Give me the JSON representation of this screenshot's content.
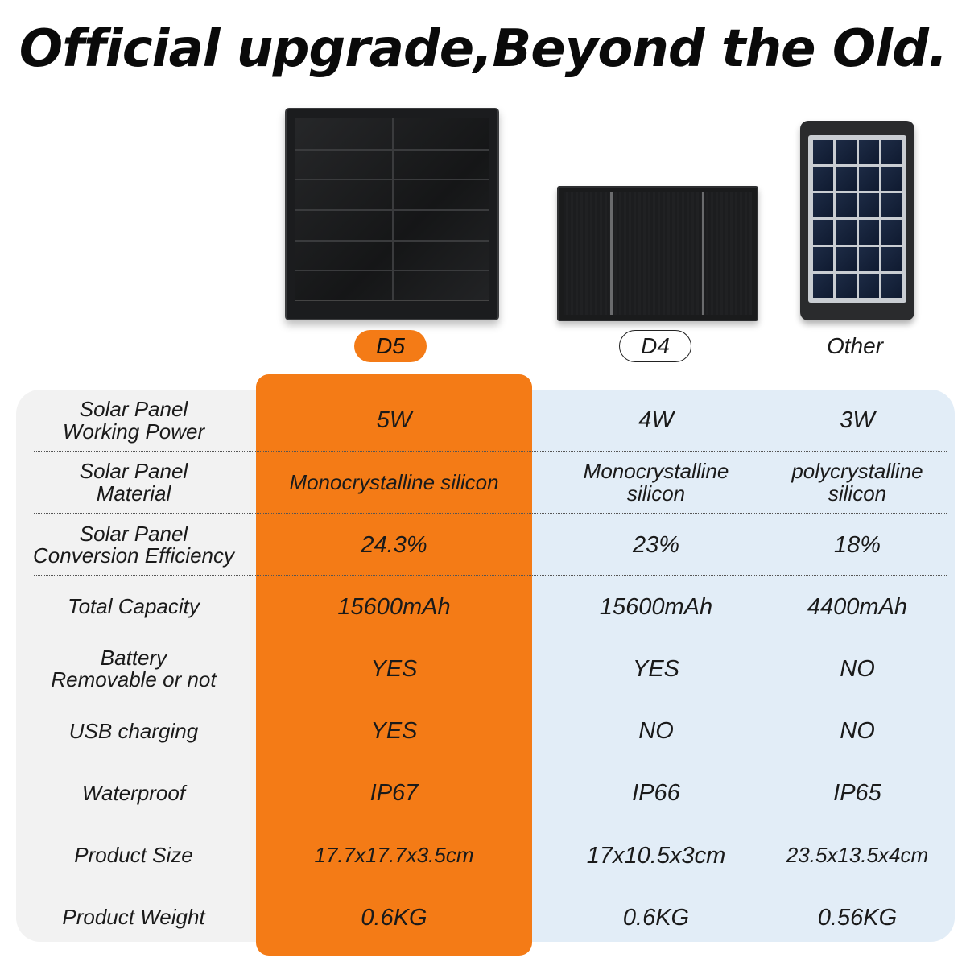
{
  "title": "Official upgrade,Beyond the Old.",
  "products": [
    {
      "label": "D5",
      "highlight": "#f47b16"
    },
    {
      "label": "D4"
    },
    {
      "label": "Other"
    }
  ],
  "rows": [
    {
      "label": "Solar Panel\nWorking Power",
      "d5": "5W",
      "d4": "4W",
      "other": "3W"
    },
    {
      "label": "Solar Panel\nMaterial",
      "d5": "Monocrystalline silicon",
      "d4": "Monocrystalline\nsilicon",
      "other": "polycrystalline\nsilicon"
    },
    {
      "label": "Solar Panel\nConversion Efficiency",
      "d5": "24.3%",
      "d4": "23%",
      "other": "18%"
    },
    {
      "label": "Total Capacity",
      "d5": "15600mAh",
      "d4": "15600mAh",
      "other": "4400mAh"
    },
    {
      "label": "Battery\nRemovable or not",
      "d5": "YES",
      "d4": "YES",
      "other": "NO"
    },
    {
      "label": "USB charging",
      "d5": "YES",
      "d4": "NO",
      "other": "NO"
    },
    {
      "label": "Waterproof",
      "d5": "IP67",
      "d4": "IP66",
      "other": "IP65"
    },
    {
      "label": "Product Size",
      "d5": "17.7x17.7x3.5cm",
      "d4": "17x10.5x3cm",
      "other": "23.5x13.5x4cm"
    },
    {
      "label": "Product Weight",
      "d5": "0.6KG",
      "d4": "0.6KG",
      "other": "0.56KG"
    }
  ]
}
